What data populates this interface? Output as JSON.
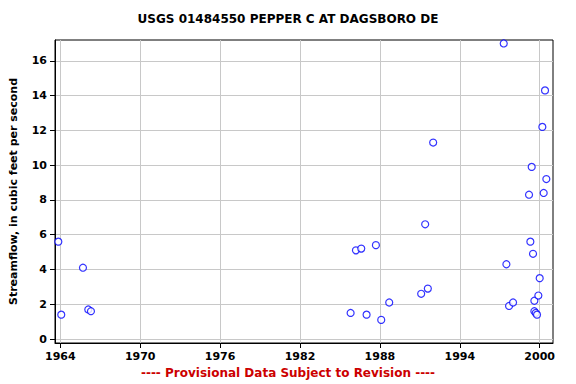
{
  "chart_data": {
    "type": "scatter",
    "title": "USGS 01484550 PEPPER C AT DAGSBORO DE",
    "y_label": "Streamflow, in cubic feet per second",
    "annotation": "---- Provisional Data Subject to Revision ----",
    "x": [
      1963.85,
      1964.07,
      1965.7,
      1966.1,
      1966.3,
      1985.8,
      1986.2,
      1986.6,
      1987.0,
      1987.7,
      1988.1,
      1988.7,
      1991.1,
      1991.4,
      1991.6,
      1992.0,
      1997.3,
      1997.5,
      1997.7,
      1998.0,
      1999.2,
      1999.3,
      1999.4,
      1999.5,
      1999.6,
      1999.6,
      1999.7,
      1999.8,
      1999.9,
      2000.0,
      2000.2,
      2000.3,
      2000.4,
      2000.5
    ],
    "values": [
      5.6,
      1.4,
      4.1,
      1.7,
      1.6,
      1.5,
      5.1,
      5.2,
      1.4,
      5.4,
      1.1,
      2.1,
      2.6,
      6.6,
      2.9,
      11.3,
      17.0,
      4.3,
      1.9,
      2.1,
      8.3,
      5.6,
      9.9,
      4.9,
      2.2,
      1.6,
      1.5,
      1.4,
      2.5,
      3.5,
      12.2,
      8.4,
      14.3,
      9.2
    ],
    "color": "#0000ff",
    "marker": "open_circle",
    "xlim": [
      1963.6,
      2001.0
    ],
    "xticks": [
      1964,
      1970,
      1976,
      1982,
      1988,
      1994,
      2000
    ],
    "ylim": [
      -0.23,
      17.2
    ],
    "yticks": [
      0,
      2,
      4,
      6,
      8,
      10,
      12,
      14,
      16
    ],
    "grid": true
  }
}
